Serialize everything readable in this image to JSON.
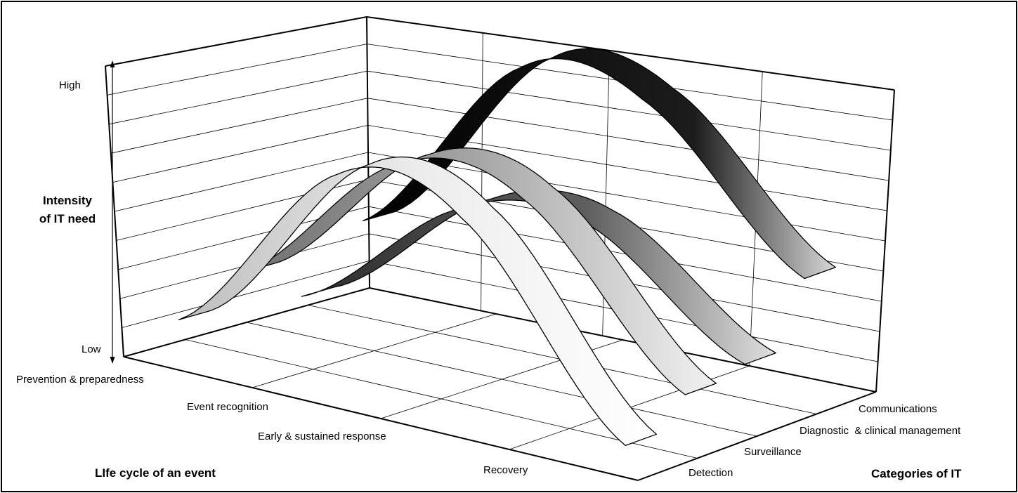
{
  "chart_data": {
    "type": "3d-ribbon",
    "y_axis": {
      "label_line1": "Intensity",
      "label_line2": "of IT need",
      "high_label": "High",
      "low_label": "Low"
    },
    "x_axis": {
      "title": "LIfe cycle of an event",
      "categories": [
        "Prevention & preparedness",
        "Event recognition",
        "Early & sustained response",
        "Recovery"
      ]
    },
    "z_axis": {
      "title": "Categories of IT",
      "categories": [
        "Detection",
        "Surveillance",
        "Diagnostic  & clinical management",
        "Communications"
      ]
    },
    "series": [
      {
        "category": "Detection",
        "values": [
          0.12,
          0.75,
          0.7,
          0.05
        ],
        "color": "#e6e6e6"
      },
      {
        "category": "Surveillance",
        "values": [
          0.22,
          0.72,
          0.7,
          0.15
        ],
        "color": "#9c9c9c"
      },
      {
        "category": "Diagnostic  & clinical management",
        "values": [
          0.08,
          0.5,
          0.55,
          0.18
        ],
        "color": "#5a5a5a"
      },
      {
        "category": "Communications",
        "values": [
          0.28,
          0.92,
          0.9,
          0.4
        ],
        "color": "#141414"
      }
    ]
  }
}
